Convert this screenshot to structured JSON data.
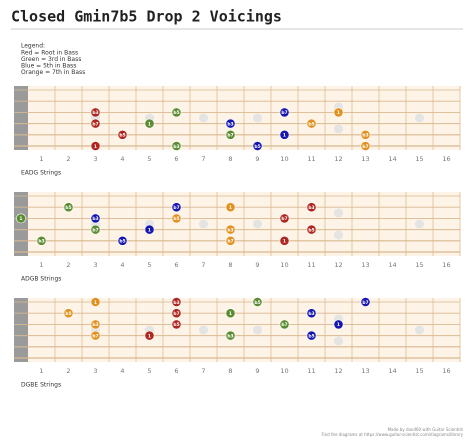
{
  "header": {
    "title": "Closed Gmin7b5 Drop 2 Voicings"
  },
  "legend": {
    "heading": "Legend:",
    "items": [
      "Red = Root in Bass",
      "Green = 3rd in Bass",
      "Blue = 5th in Bass",
      "Orange = 7th in Bass"
    ]
  },
  "fret_numbers": [
    1,
    2,
    3,
    4,
    5,
    6,
    7,
    8,
    9,
    10,
    11,
    12,
    13,
    14,
    15,
    16
  ],
  "diagrams": [
    {
      "caption": "EADG Strings",
      "notes": [
        {
          "string": 6,
          "fret": 3,
          "label": "1",
          "color": "#b0261e"
        },
        {
          "string": 5,
          "fret": 4,
          "label": "b5",
          "color": "#b0261e"
        },
        {
          "string": 4,
          "fret": 3,
          "label": "b7",
          "color": "#b0261e"
        },
        {
          "string": 3,
          "fret": 3,
          "label": "b3",
          "color": "#b0261e"
        },
        {
          "string": 6,
          "fret": 6,
          "label": "b3",
          "color": "#5b8c32"
        },
        {
          "string": 5,
          "fret": 8,
          "label": "b7",
          "color": "#5b8c32"
        },
        {
          "string": 4,
          "fret": 5,
          "label": "1",
          "color": "#5b8c32"
        },
        {
          "string": 3,
          "fret": 6,
          "label": "b5",
          "color": "#5b8c32"
        },
        {
          "string": 6,
          "fret": 9,
          "label": "b5",
          "color": "#1616b0"
        },
        {
          "string": 5,
          "fret": 10,
          "label": "1",
          "color": "#1616b0"
        },
        {
          "string": 4,
          "fret": 8,
          "label": "b3",
          "color": "#1616b0"
        },
        {
          "string": 3,
          "fret": 10,
          "label": "b7",
          "color": "#1616b0"
        },
        {
          "string": 6,
          "fret": 13,
          "label": "b7",
          "color": "#e3901e"
        },
        {
          "string": 5,
          "fret": 13,
          "label": "b3",
          "color": "#e3901e"
        },
        {
          "string": 4,
          "fret": 11,
          "label": "b5",
          "color": "#e3901e"
        },
        {
          "string": 3,
          "fret": 12,
          "label": "1",
          "color": "#e3901e"
        }
      ]
    },
    {
      "caption": "ADGB Strings",
      "notes": [
        {
          "string": 5,
          "fret": 10,
          "label": "1",
          "color": "#b0261e"
        },
        {
          "string": 4,
          "fret": 11,
          "label": "b5",
          "color": "#b0261e"
        },
        {
          "string": 3,
          "fret": 10,
          "label": "b7",
          "color": "#b0261e"
        },
        {
          "string": 2,
          "fret": 11,
          "label": "b3",
          "color": "#b0261e"
        },
        {
          "string": 5,
          "fret": 1,
          "label": "b3",
          "color": "#5b8c32"
        },
        {
          "string": 4,
          "fret": 3,
          "label": "b7",
          "color": "#5b8c32"
        },
        {
          "string": 3,
          "fret": 0,
          "label": "1",
          "color": "#5b8c32"
        },
        {
          "string": 2,
          "fret": 2,
          "label": "b5",
          "color": "#5b8c32"
        },
        {
          "string": 5,
          "fret": 4,
          "label": "b5",
          "color": "#1616b0"
        },
        {
          "string": 4,
          "fret": 5,
          "label": "1",
          "color": "#1616b0"
        },
        {
          "string": 3,
          "fret": 3,
          "label": "b3",
          "color": "#1616b0"
        },
        {
          "string": 2,
          "fret": 6,
          "label": "b7",
          "color": "#1616b0"
        },
        {
          "string": 5,
          "fret": 8,
          "label": "b7",
          "color": "#e3901e"
        },
        {
          "string": 4,
          "fret": 8,
          "label": "b3",
          "color": "#e3901e"
        },
        {
          "string": 3,
          "fret": 6,
          "label": "b5",
          "color": "#e3901e"
        },
        {
          "string": 2,
          "fret": 8,
          "label": "1",
          "color": "#e3901e"
        }
      ]
    },
    {
      "caption": "DGBE Strings",
      "notes": [
        {
          "string": 4,
          "fret": 5,
          "label": "1",
          "color": "#b0261e"
        },
        {
          "string": 3,
          "fret": 6,
          "label": "b5",
          "color": "#b0261e"
        },
        {
          "string": 2,
          "fret": 6,
          "label": "b7",
          "color": "#b0261e"
        },
        {
          "string": 1,
          "fret": 6,
          "label": "b3",
          "color": "#b0261e"
        },
        {
          "string": 4,
          "fret": 8,
          "label": "b3",
          "color": "#5b8c32"
        },
        {
          "string": 3,
          "fret": 10,
          "label": "b7",
          "color": "#5b8c32"
        },
        {
          "string": 2,
          "fret": 8,
          "label": "1",
          "color": "#5b8c32"
        },
        {
          "string": 1,
          "fret": 9,
          "label": "b5",
          "color": "#5b8c32"
        },
        {
          "string": 4,
          "fret": 11,
          "label": "b5",
          "color": "#1616b0"
        },
        {
          "string": 3,
          "fret": 12,
          "label": "1",
          "color": "#1616b0"
        },
        {
          "string": 2,
          "fret": 11,
          "label": "b3",
          "color": "#1616b0"
        },
        {
          "string": 1,
          "fret": 13,
          "label": "b7",
          "color": "#1616b0"
        },
        {
          "string": 4,
          "fret": 3,
          "label": "b7",
          "color": "#e3901e"
        },
        {
          "string": 3,
          "fret": 3,
          "label": "b3",
          "color": "#e3901e"
        },
        {
          "string": 2,
          "fret": 2,
          "label": "b5",
          "color": "#e3901e"
        },
        {
          "string": 1,
          "fret": 3,
          "label": "1",
          "color": "#e3901e"
        }
      ]
    }
  ],
  "footer": [
    "Made by dan460 with Guitar Scientist",
    "Find the diagrams at https://www.guitar-scientist.com/diagrams/library"
  ]
}
